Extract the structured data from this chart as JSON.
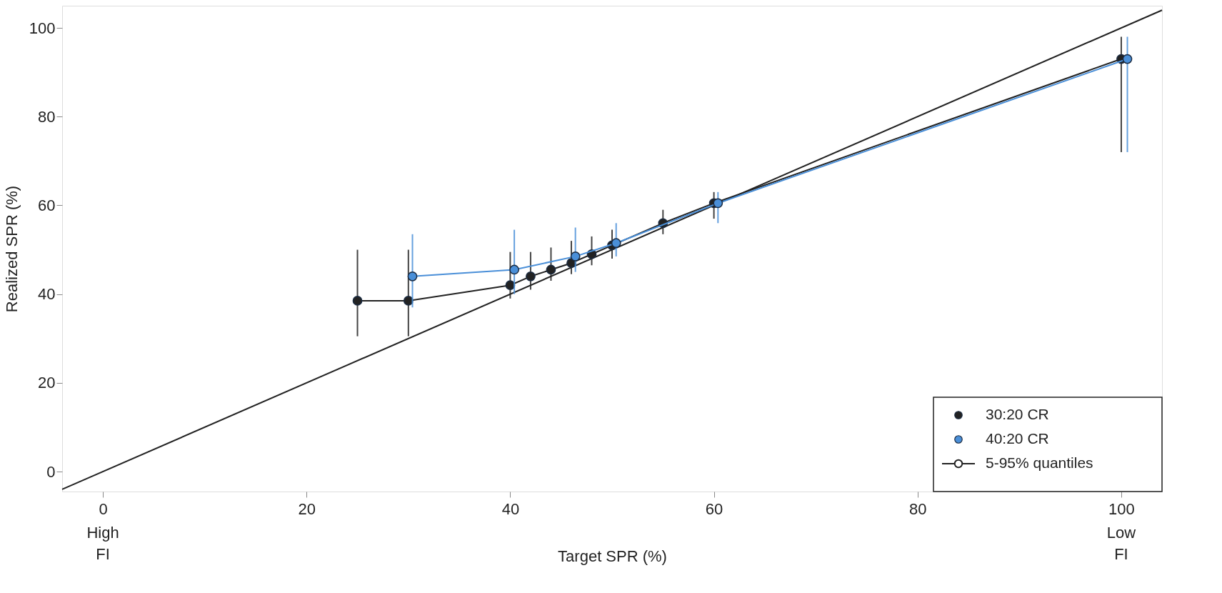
{
  "chart_data": {
    "type": "line",
    "xlabel": "Target SPR (%)",
    "ylabel": "Realized SPR (%)",
    "xlim": [
      -4,
      104
    ],
    "ylim": [
      -4.5,
      105
    ],
    "xticks": [
      0,
      20,
      40,
      60,
      80,
      100
    ],
    "yticks": [
      0,
      20,
      40,
      60,
      80,
      100
    ],
    "grid": false,
    "legend": "bottom right",
    "marker": "circle",
    "line_style": "solid",
    "series": [
      {
        "color": "#222222",
        "x": [
          -4,
          104
        ],
        "values": [
          -4,
          104
        ],
        "marker": "none"
      },
      {
        "name": "30:20 CR",
        "color": "#222222",
        "x": [
          25,
          30,
          40,
          42,
          44,
          46,
          48,
          50,
          55,
          60,
          100
        ],
        "values": [
          38.5,
          38.5,
          42,
          44,
          45.5,
          47,
          49,
          51,
          56,
          60.5,
          93
        ],
        "errors": [
          [
            30.5,
            50
          ],
          [
            30.5,
            50
          ],
          [
            39,
            49.5
          ],
          [
            41,
            49.5
          ],
          [
            43,
            50.5
          ],
          [
            44.5,
            52
          ],
          [
            46.5,
            53
          ],
          [
            48,
            54.5
          ],
          [
            53.5,
            59
          ],
          [
            57,
            63
          ],
          [
            72,
            98
          ]
        ]
      },
      {
        "name": "40:20 CR",
        "color": "#4a8fd8",
        "x": [
          30.4,
          40.4,
          46.4,
          50.4,
          60.4,
          100.6
        ],
        "values": [
          44,
          45.5,
          48.5,
          51.5,
          60.5,
          93
        ],
        "errors": [
          [
            37,
            53.5
          ],
          [
            40,
            54.5
          ],
          [
            45,
            55
          ],
          [
            48.5,
            56
          ],
          [
            56,
            63
          ],
          [
            72,
            98
          ]
        ]
      }
    ],
    "annotations": [
      "High FI",
      "Low FI",
      "5-95% quantiles"
    ]
  }
}
